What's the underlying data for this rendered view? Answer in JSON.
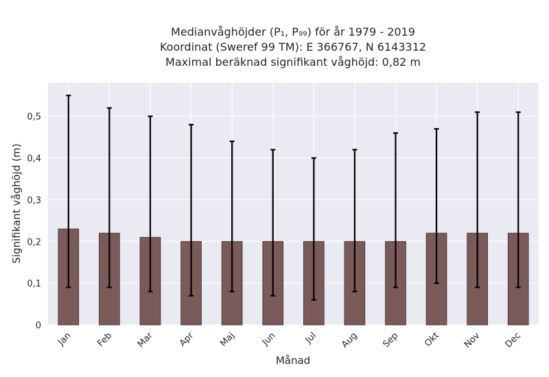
{
  "chart_data": {
    "type": "bar",
    "title_lines": [
      "Medianvåghöjder (P₁, P₉₉) för år 1979 - 2019",
      "Koordinat (Sweref 99 TM): E 366767, N 6143312",
      "Maximal beräknad signifikant våghöjd: 0,82 m"
    ],
    "xlabel": "Månad",
    "ylabel": "Signifikant våghöjd (m)",
    "categories": [
      "Jan",
      "Feb",
      "Mar",
      "Apr",
      "Maj",
      "Jun",
      "Jul",
      "Aug",
      "Sep",
      "Okt",
      "Nov",
      "Dec"
    ],
    "values": [
      0.23,
      0.22,
      0.21,
      0.2,
      0.2,
      0.2,
      0.2,
      0.2,
      0.2,
      0.22,
      0.22,
      0.22
    ],
    "p1": [
      0.09,
      0.09,
      0.08,
      0.07,
      0.08,
      0.07,
      0.06,
      0.08,
      0.09,
      0.1,
      0.09,
      0.09
    ],
    "p99": [
      0.55,
      0.52,
      0.5,
      0.48,
      0.44,
      0.42,
      0.4,
      0.42,
      0.46,
      0.47,
      0.51,
      0.51
    ],
    "ylim": [
      0,
      0.58
    ],
    "yticks": [
      0,
      0.1,
      0.2,
      0.3,
      0.4,
      0.5
    ],
    "ytick_labels": [
      "0",
      "0,1",
      "0,2",
      "0,3",
      "0,4",
      "0,5"
    ],
    "grid": true,
    "colors": {
      "bar": "#7b5a5a",
      "bar_edge": "#3a2a2a",
      "error": "#000000",
      "plot_bg": "#eaeaf2",
      "grid": "#ffffff"
    }
  }
}
